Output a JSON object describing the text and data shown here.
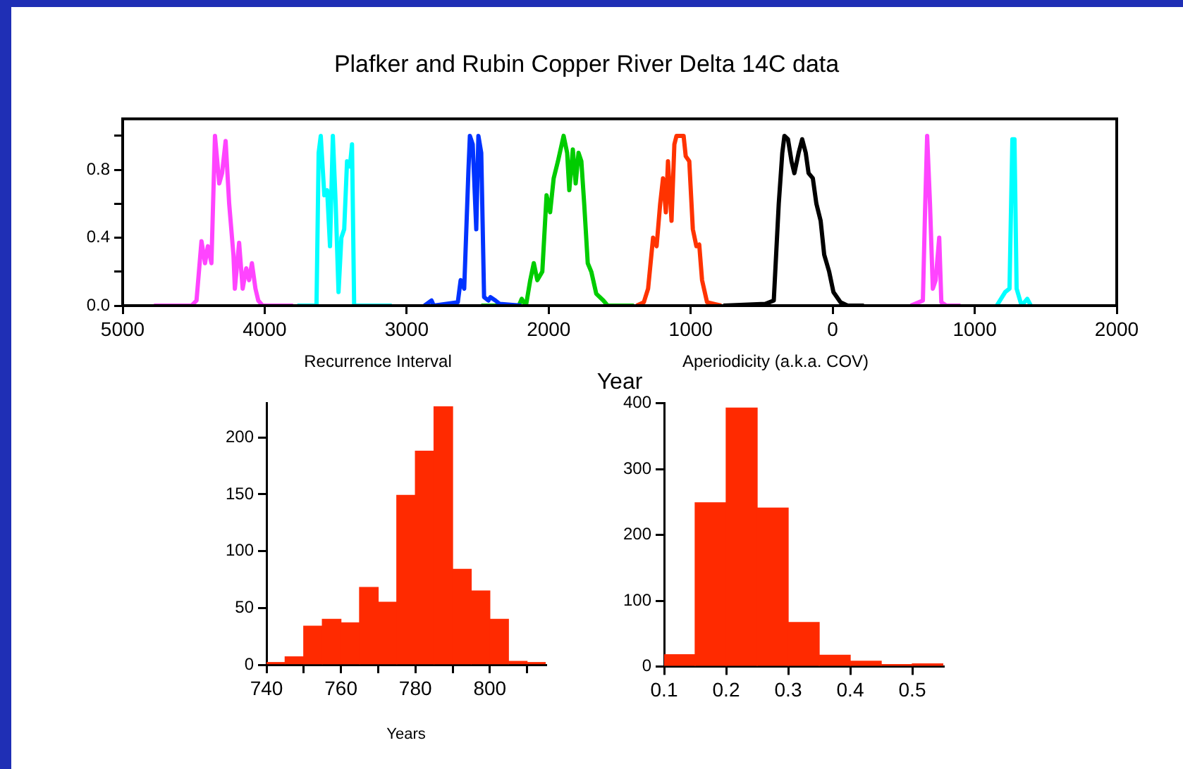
{
  "chart_data": [
    {
      "type": "line",
      "title": "Plafker and Rubin Copper River Delta 14C data",
      "xlabel": "Year",
      "xlim": [
        -5000,
        2000
      ],
      "ylim": [
        0,
        1.1
      ],
      "xticks": [
        {
          "value": -5000,
          "label": "5000"
        },
        {
          "value": -4000,
          "label": "4000"
        },
        {
          "value": -3000,
          "label": "3000"
        },
        {
          "value": -2000,
          "label": "2000"
        },
        {
          "value": -1000,
          "label": "1000"
        },
        0,
        1000,
        2000
      ],
      "yticks": [
        {
          "value": 0,
          "label": "0.0"
        },
        {
          "value": 0.2,
          "label": null
        },
        {
          "value": 0.4,
          "label": "0.4"
        },
        {
          "value": 0.6,
          "label": null
        },
        {
          "value": 0.8,
          "label": "0.8"
        },
        {
          "value": 1,
          "label": null
        }
      ],
      "series": [
        {
          "color": "#ff44ff",
          "x": [
            -4780,
            -4515,
            -4480,
            -4445,
            -4420,
            -4400,
            -4375,
            -4350,
            -4320,
            -4300,
            -4275,
            -4250,
            -4220,
            -4210,
            -4180,
            -4155,
            -4130,
            -4110,
            -4090,
            -4065,
            -4045,
            -4015,
            -3800
          ],
          "values": [
            0,
            0,
            0.03,
            0.38,
            0.25,
            0.35,
            0.25,
            1,
            0.72,
            0.78,
            0.97,
            0.6,
            0.3,
            0.1,
            0.37,
            0.1,
            0.22,
            0.15,
            0.25,
            0.1,
            0.03,
            0,
            0
          ]
        },
        {
          "color": "#00ffff",
          "x": [
            -3770,
            -3635,
            -3620,
            -3605,
            -3580,
            -3560,
            -3540,
            -3520,
            -3500,
            -3480,
            -3460,
            -3440,
            -3420,
            -3400,
            -3385,
            -3370,
            -3105
          ],
          "values": [
            0,
            0,
            0.9,
            1,
            0.65,
            0.68,
            0.35,
            1,
            0.6,
            0.08,
            0.4,
            0.45,
            0.85,
            0.82,
            0.95,
            0,
            0
          ]
        },
        {
          "color": "#0033ff",
          "x": [
            -2875,
            -2825,
            -2810,
            -2640,
            -2620,
            -2595,
            -2565,
            -2555,
            -2535,
            -2510,
            -2495,
            -2475,
            -2455,
            -2425,
            -2410,
            -2375,
            -2345,
            -2195
          ],
          "values": [
            0,
            0.03,
            0,
            0.02,
            0.15,
            0.1,
            0.8,
            1,
            0.95,
            0.45,
            1,
            0.9,
            0.05,
            0.03,
            0.05,
            0.03,
            0.01,
            0
          ]
        },
        {
          "color": "#00cc00",
          "x": [
            -2475,
            -2210,
            -2190,
            -2160,
            -2130,
            -2105,
            -2080,
            -2045,
            -2015,
            -1990,
            -1965,
            -1935,
            -1895,
            -1870,
            -1855,
            -1830,
            -1810,
            -1790,
            -1770,
            -1750,
            -1725,
            -1700,
            -1665,
            -1615,
            -1585,
            -1400
          ],
          "values": [
            0,
            0,
            0.04,
            0,
            0.15,
            0.25,
            0.15,
            0.2,
            0.65,
            0.55,
            0.75,
            0.85,
            1,
            0.9,
            0.68,
            0.92,
            0.72,
            0.9,
            0.85,
            0.6,
            0.25,
            0.2,
            0.07,
            0.03,
            0,
            0
          ]
        },
        {
          "color": "#ff3300",
          "x": [
            -1380,
            -1330,
            -1300,
            -1265,
            -1240,
            -1215,
            -1195,
            -1175,
            -1160,
            -1135,
            -1115,
            -1100,
            -1050,
            -1035,
            -1010,
            -985,
            -960,
            -940,
            -920,
            -885,
            -785
          ],
          "values": [
            0,
            0.02,
            0.1,
            0.4,
            0.35,
            0.6,
            0.75,
            0.55,
            0.85,
            0.5,
            0.95,
            1,
            1,
            0.88,
            0.85,
            0.45,
            0.35,
            0.36,
            0.15,
            0.02,
            0
          ]
        },
        {
          "color": "#000000",
          "x": [
            -770,
            -475,
            -415,
            -380,
            -355,
            -340,
            -315,
            -290,
            -270,
            -240,
            -215,
            -190,
            -170,
            -140,
            -115,
            -85,
            -60,
            -25,
            5,
            55,
            105,
            220
          ],
          "values": [
            0,
            0.01,
            0.03,
            0.6,
            0.9,
            1,
            0.98,
            0.85,
            0.78,
            0.9,
            0.98,
            0.9,
            0.78,
            0.75,
            0.6,
            0.5,
            0.3,
            0.2,
            0.08,
            0.02,
            0,
            0
          ]
        },
        {
          "color": "#ff44ff",
          "x": [
            550,
            635,
            650,
            665,
            685,
            705,
            725,
            750,
            765,
            800,
            900
          ],
          "values": [
            0,
            0.03,
            0.55,
            1,
            0.6,
            0.1,
            0.15,
            0.4,
            0.02,
            0,
            0
          ]
        },
        {
          "color": "#00ffff",
          "x": [
            1155,
            1215,
            1245,
            1265,
            1280,
            1295,
            1330,
            1370,
            1395
          ],
          "values": [
            0,
            0.08,
            0.1,
            0.98,
            0.98,
            0.1,
            0,
            0.04,
            0
          ]
        }
      ]
    },
    {
      "type": "histogram",
      "title": "Recurrence Interval",
      "xlabel": "Years",
      "color": "#ff2a00",
      "bins": [
        740,
        745,
        750,
        755,
        760,
        765,
        770,
        775,
        780,
        785,
        790,
        795,
        800,
        805,
        810,
        815
      ],
      "values": [
        2,
        7,
        34,
        40,
        37,
        68,
        55,
        149,
        188,
        227,
        84,
        65,
        40,
        3,
        2
      ],
      "xlim": [
        740,
        815
      ],
      "ylim": [
        0,
        230
      ],
      "xticks": [
        740,
        {
          "value": 750,
          "label": null
        },
        760,
        {
          "value": 770,
          "label": null
        },
        780,
        {
          "value": 790,
          "label": null
        },
        800,
        {
          "value": 810,
          "label": null
        }
      ],
      "yticks": [
        0,
        50,
        100,
        150,
        200
      ]
    },
    {
      "type": "histogram",
      "title": "Aperiodicity (a.k.a. COV)",
      "color": "#ff2a00",
      "bins": [
        0.1,
        0.15,
        0.2,
        0.25,
        0.3,
        0.35,
        0.4,
        0.45,
        0.5,
        0.55
      ],
      "values": [
        18,
        249,
        393,
        241,
        67,
        17,
        8,
        3,
        4
      ],
      "xlim": [
        0.1,
        0.55
      ],
      "ylim": [
        0,
        400
      ],
      "xticks": [
        0.1,
        0.2,
        0.3,
        0.4,
        0.5
      ],
      "yticks": [
        0,
        100,
        200,
        300,
        400
      ]
    }
  ]
}
